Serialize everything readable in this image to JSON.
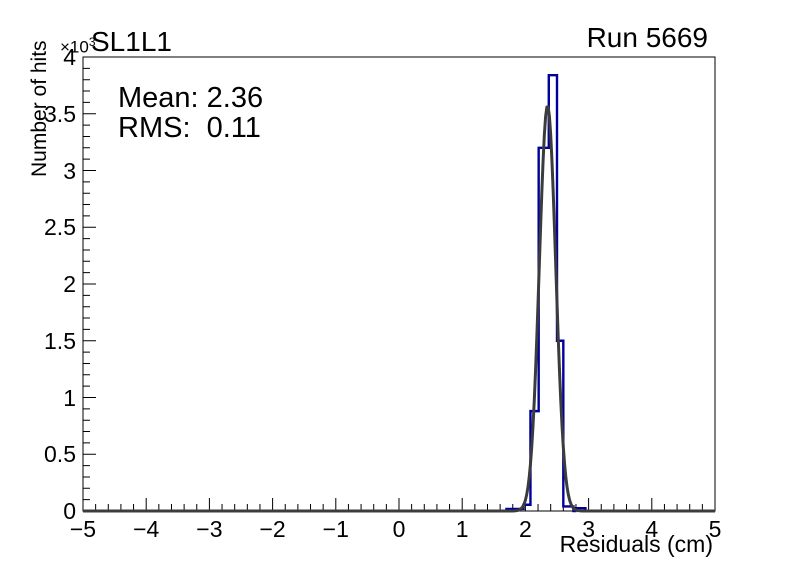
{
  "header": {
    "title": "SL1L1",
    "run_label": "Run 5669"
  },
  "stats_box": {
    "mean_text": "Mean: 2.36",
    "rms_text": "RMS:  0.11"
  },
  "axes": {
    "x": {
      "title": "Residuals (cm)",
      "tick_values": [
        -5,
        -4,
        -3,
        -2,
        -1,
        0,
        1,
        2,
        3,
        4,
        5
      ],
      "tick_labels": [
        "−5",
        "−4",
        "−3",
        "−2",
        "−1",
        "0",
        "1",
        "2",
        "3",
        "4",
        "5"
      ],
      "minor_step": 0.2
    },
    "y": {
      "title": "Number of hits",
      "multiplier_base": "×10",
      "multiplier_exp": "3",
      "tick_values": [
        0,
        500,
        1000,
        1500,
        2000,
        2500,
        3000,
        3500,
        4000
      ],
      "tick_labels": [
        "0",
        "0.5",
        "1",
        "1.5",
        "2",
        "2.5",
        "3",
        "3.5",
        "4"
      ],
      "minor_step": 100
    }
  },
  "chart_data": {
    "type": "histogram",
    "title": "SL1L1",
    "annotation": "Run 5669",
    "xlabel": "Residuals (cm)",
    "ylabel": "Number of hits",
    "xlim": [
      -5,
      5
    ],
    "ylim": [
      0,
      4000
    ],
    "y_axis_multiplier": "1e3",
    "stats": {
      "mean": 2.36,
      "rms": 0.11
    },
    "bins": [
      [
        -5.0,
        1.7,
        0
      ],
      [
        1.7,
        1.97,
        18
      ],
      [
        1.97,
        2.08,
        55
      ],
      [
        2.08,
        2.21,
        880
      ],
      [
        2.21,
        2.37,
        3200
      ],
      [
        2.37,
        2.5,
        3840
      ],
      [
        2.5,
        2.6,
        1500
      ],
      [
        2.6,
        2.76,
        40
      ],
      [
        2.76,
        2.79,
        0
      ],
      [
        2.79,
        2.95,
        25
      ],
      [
        2.95,
        5.0,
        0
      ]
    ],
    "fit": {
      "type": "gaussian",
      "amplitude": 3570,
      "mean": 2.35,
      "sigma": 0.13
    },
    "legend": "none",
    "grid": false
  },
  "colors": {
    "histogram": "#00009a",
    "fit_curve": "#3c3c3c",
    "frame": "#000000",
    "background": "#ffffff",
    "text": "#000000"
  }
}
